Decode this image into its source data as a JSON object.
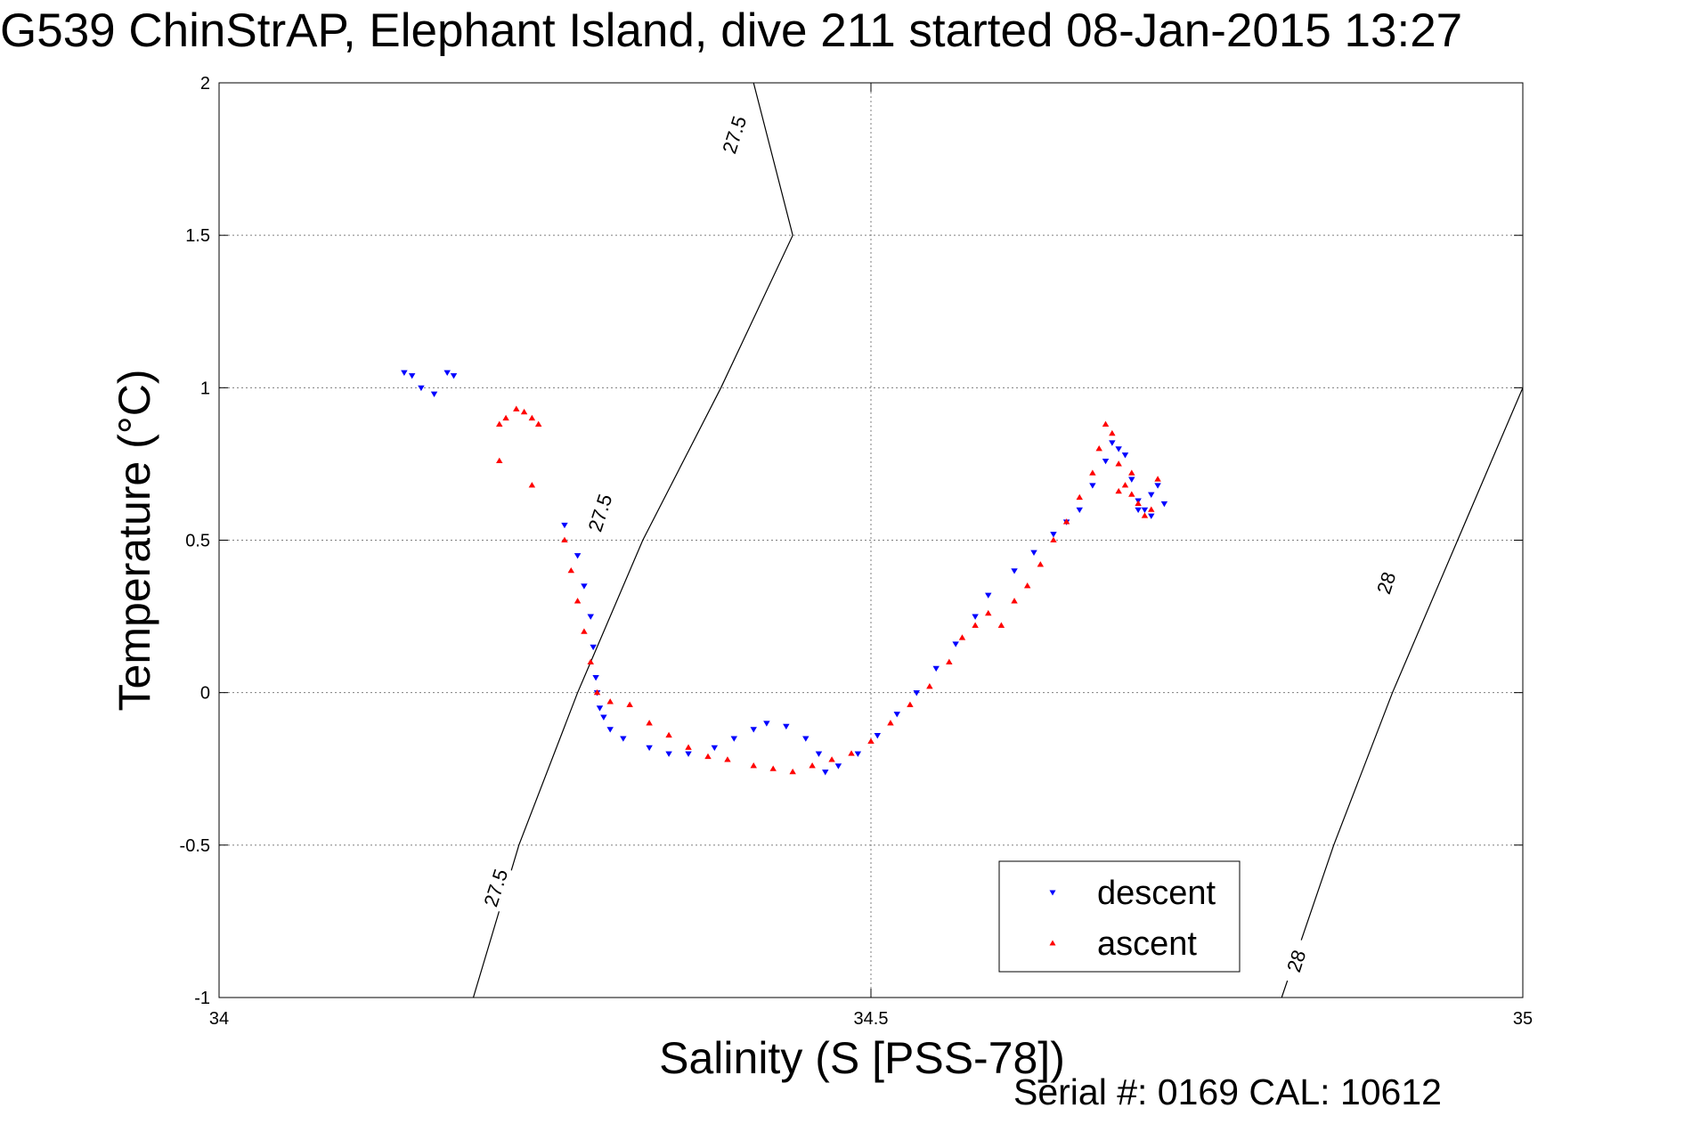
{
  "title": "G539 ChinStrAP, Elephant Island, dive 211 started 08-Jan-2015 13:27",
  "footer": {
    "serial": "Serial #: 0169 CAL: 10612"
  },
  "colors": {
    "descent": "#0000ff",
    "ascent": "#ff0000",
    "contour": "#000000",
    "grid": "#7f7f7f"
  },
  "chart_data": {
    "type": "scatter",
    "title": "G539 ChinStrAP, Elephant Island, dive 211 started 08-Jan-2015 13:27",
    "xlabel": "Salinity (S [PSS-78])",
    "ylabel": "Temperature (°C)",
    "xlim": [
      34,
      35
    ],
    "ylim": [
      -1,
      2
    ],
    "xticks": [
      "34",
      "34.5",
      "35"
    ],
    "yticks": [
      "-1",
      "-0.5",
      "0",
      "0.5",
      "1",
      "1.5",
      "2"
    ],
    "grid": true,
    "legend_position": "bottom-right",
    "contours": [
      {
        "label": "27.5",
        "points": [
          [
            34.195,
            -1.0
          ],
          [
            34.23,
            -0.5
          ],
          [
            34.275,
            0.0
          ],
          [
            34.325,
            0.5
          ],
          [
            34.385,
            1.0
          ],
          [
            34.44,
            1.5
          ],
          [
            34.41,
            2.0
          ]
        ]
      },
      {
        "label": "28",
        "points": [
          [
            34.815,
            -1.0
          ],
          [
            34.855,
            -0.5
          ],
          [
            34.9,
            0.0
          ],
          [
            34.95,
            0.5
          ],
          [
            35.0,
            1.0
          ]
        ]
      }
    ],
    "contour_labels": [
      {
        "text": "27.5",
        "x": 34.395,
        "y": 1.83,
        "angle": -72
      },
      {
        "text": "27.5",
        "x": 34.292,
        "y": 0.59,
        "angle": -72
      },
      {
        "text": "27.5",
        "x": 34.212,
        "y": -0.64,
        "angle": -72
      },
      {
        "text": "28",
        "x": 34.895,
        "y": 0.36,
        "angle": -72
      },
      {
        "text": "28",
        "x": 34.826,
        "y": -0.88,
        "angle": -72
      }
    ],
    "series": [
      {
        "name": "descent",
        "color": "#0000ff",
        "marker": "triangle-down",
        "x": [
          34.142,
          34.148,
          34.155,
          34.165,
          34.175,
          34.18,
          34.265,
          34.275,
          34.28,
          34.285,
          34.287,
          34.289,
          34.29,
          34.292,
          34.295,
          34.3,
          34.31,
          34.33,
          34.345,
          34.36,
          34.38,
          34.395,
          34.41,
          34.42,
          34.435,
          34.45,
          34.46,
          34.465,
          34.475,
          34.49,
          34.505,
          34.52,
          34.535,
          34.55,
          34.565,
          34.58,
          34.59,
          34.61,
          34.625,
          34.64,
          34.65,
          34.66,
          34.67,
          34.68,
          34.685,
          34.69,
          34.695,
          34.7,
          34.705,
          34.71,
          34.715,
          34.72,
          34.725,
          34.715,
          34.705
        ],
        "y": [
          1.05,
          1.04,
          1.0,
          0.98,
          1.05,
          1.04,
          0.55,
          0.45,
          0.35,
          0.25,
          0.15,
          0.05,
          0.0,
          -0.05,
          -0.08,
          -0.12,
          -0.15,
          -0.18,
          -0.2,
          -0.2,
          -0.18,
          -0.15,
          -0.12,
          -0.1,
          -0.11,
          -0.15,
          -0.2,
          -0.26,
          -0.24,
          -0.2,
          -0.14,
          -0.07,
          0.0,
          0.08,
          0.16,
          0.25,
          0.32,
          0.4,
          0.46,
          0.52,
          0.56,
          0.6,
          0.68,
          0.76,
          0.82,
          0.8,
          0.78,
          0.7,
          0.63,
          0.6,
          0.65,
          0.68,
          0.62,
          0.58,
          0.6
        ]
      },
      {
        "name": "ascent",
        "color": "#ff0000",
        "marker": "triangle-up",
        "x": [
          34.215,
          34.22,
          34.228,
          34.234,
          34.24,
          34.245,
          34.215,
          34.24,
          34.265,
          34.27,
          34.275,
          34.28,
          34.285,
          34.29,
          34.3,
          34.315,
          34.33,
          34.345,
          34.36,
          34.375,
          34.39,
          34.41,
          34.425,
          34.44,
          34.455,
          34.47,
          34.485,
          34.5,
          34.515,
          34.53,
          34.545,
          34.56,
          34.57,
          34.58,
          34.59,
          34.6,
          34.61,
          34.62,
          34.63,
          34.64,
          34.65,
          34.66,
          34.67,
          34.675,
          34.68,
          34.685,
          34.69,
          34.695,
          34.7,
          34.705,
          34.71,
          34.715,
          34.72,
          34.7,
          34.69
        ],
        "y": [
          0.88,
          0.9,
          0.93,
          0.92,
          0.9,
          0.88,
          0.76,
          0.68,
          0.5,
          0.4,
          0.3,
          0.2,
          0.1,
          0.0,
          -0.03,
          -0.04,
          -0.1,
          -0.14,
          -0.18,
          -0.21,
          -0.22,
          -0.24,
          -0.25,
          -0.26,
          -0.24,
          -0.22,
          -0.2,
          -0.16,
          -0.1,
          -0.04,
          0.02,
          0.1,
          0.18,
          0.22,
          0.26,
          0.22,
          0.3,
          0.35,
          0.42,
          0.5,
          0.56,
          0.64,
          0.72,
          0.8,
          0.88,
          0.85,
          0.75,
          0.68,
          0.65,
          0.62,
          0.58,
          0.6,
          0.7,
          0.72,
          0.66
        ]
      }
    ]
  }
}
